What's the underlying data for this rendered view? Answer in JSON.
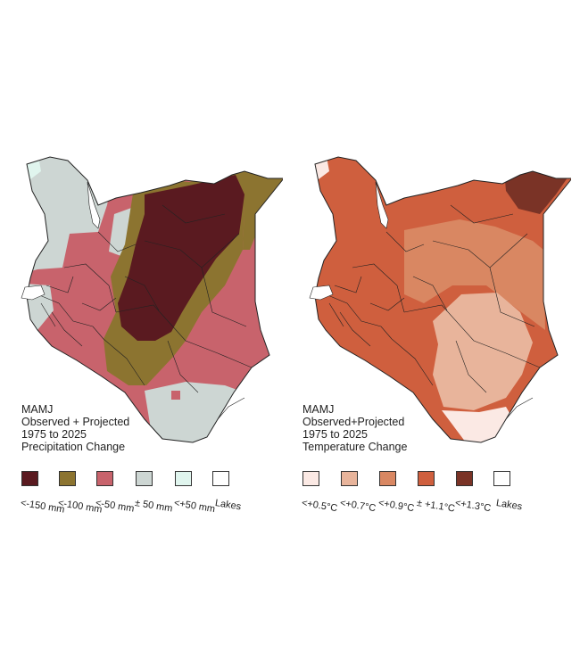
{
  "panels": [
    {
      "season": "MAMJ",
      "period_line": "Observed + Projected",
      "years": "1975 to 2025",
      "variable": "Precipitation Change",
      "legend": [
        {
          "label": "<-150 mm",
          "color": "#5a1a20"
        },
        {
          "label": "<-100 mm",
          "color": "#8c7430"
        },
        {
          "label": "<-50 mm",
          "color": "#c8636c"
        },
        {
          "label": "± 50 mm",
          "color": "#cdd6d3"
        },
        {
          "label": "<+50 mm",
          "color": "#e0f5ee"
        },
        {
          "label": "Lakes",
          "color": "#ffffff"
        }
      ]
    },
    {
      "season": "MAMJ",
      "period_line": "Observed+Projected",
      "years": "1975 to 2025",
      "variable": "Temperature Change",
      "legend": [
        {
          "label": "<+0.5°C",
          "color": "#fbe9e4"
        },
        {
          "label": "<+0.7°C",
          "color": "#e8b49b"
        },
        {
          "label": "<+0.9°C",
          "color": "#d98762"
        },
        {
          "label": "± +1.1°C",
          "color": "#cf5f3e"
        },
        {
          "label": "<+1.3°C",
          "color": "#7a3326"
        },
        {
          "label": "Lakes",
          "color": "#ffffff"
        }
      ]
    }
  ]
}
